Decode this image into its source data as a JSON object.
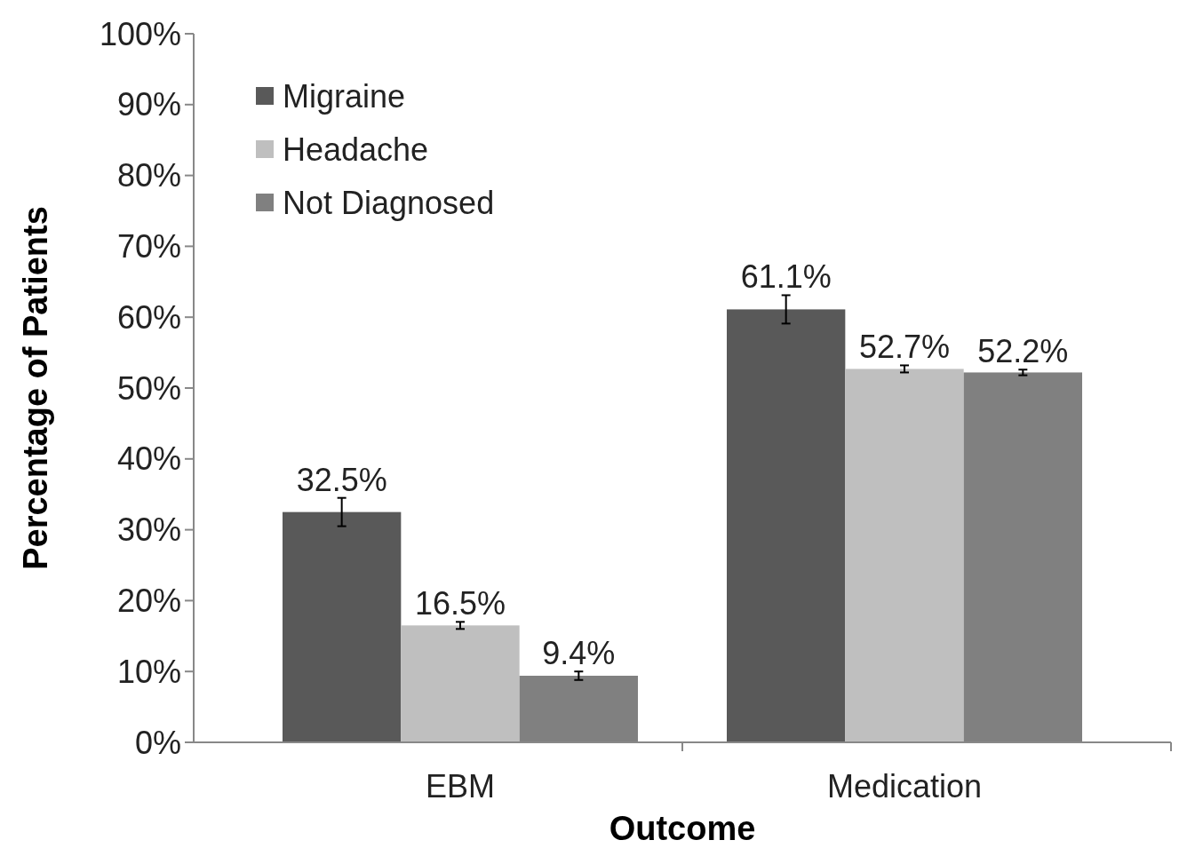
{
  "chart_data": {
    "type": "bar",
    "xlabel": "Outcome",
    "ylabel": "Percentage of Patients",
    "categories": [
      "EBM",
      "Medication"
    ],
    "series": [
      {
        "name": "Migraine",
        "color": "#595959",
        "values": [
          32.5,
          61.1
        ],
        "errors": [
          2,
          2
        ],
        "value_labels": [
          "32.5%",
          "61.1%"
        ]
      },
      {
        "name": "Headache",
        "color": "#bfbfbf",
        "values": [
          16.5,
          52.7
        ],
        "errors": [
          0.5,
          0.5
        ],
        "value_labels": [
          "16.5%",
          "52.7%"
        ]
      },
      {
        "name": "Not Diagnosed",
        "color": "#808080",
        "values": [
          9.4,
          52.2
        ],
        "errors": [
          0.6,
          0.4
        ],
        "value_labels": [
          "9.4%",
          "52.2%"
        ]
      }
    ],
    "ylim": [
      0,
      100
    ],
    "yticks": [
      {
        "value": 0,
        "label": "0%"
      },
      {
        "value": 10,
        "label": "10%"
      },
      {
        "value": 20,
        "label": "20%"
      },
      {
        "value": 30,
        "label": "30%"
      },
      {
        "value": 40,
        "label": "40%"
      },
      {
        "value": 50,
        "label": "50%"
      },
      {
        "value": 60,
        "label": "60%"
      },
      {
        "value": 70,
        "label": "70%"
      },
      {
        "value": 80,
        "label": "80%"
      },
      {
        "value": 90,
        "label": "90%"
      },
      {
        "value": 100,
        "label": "100%"
      }
    ],
    "legend": "top left",
    "grid": false
  }
}
